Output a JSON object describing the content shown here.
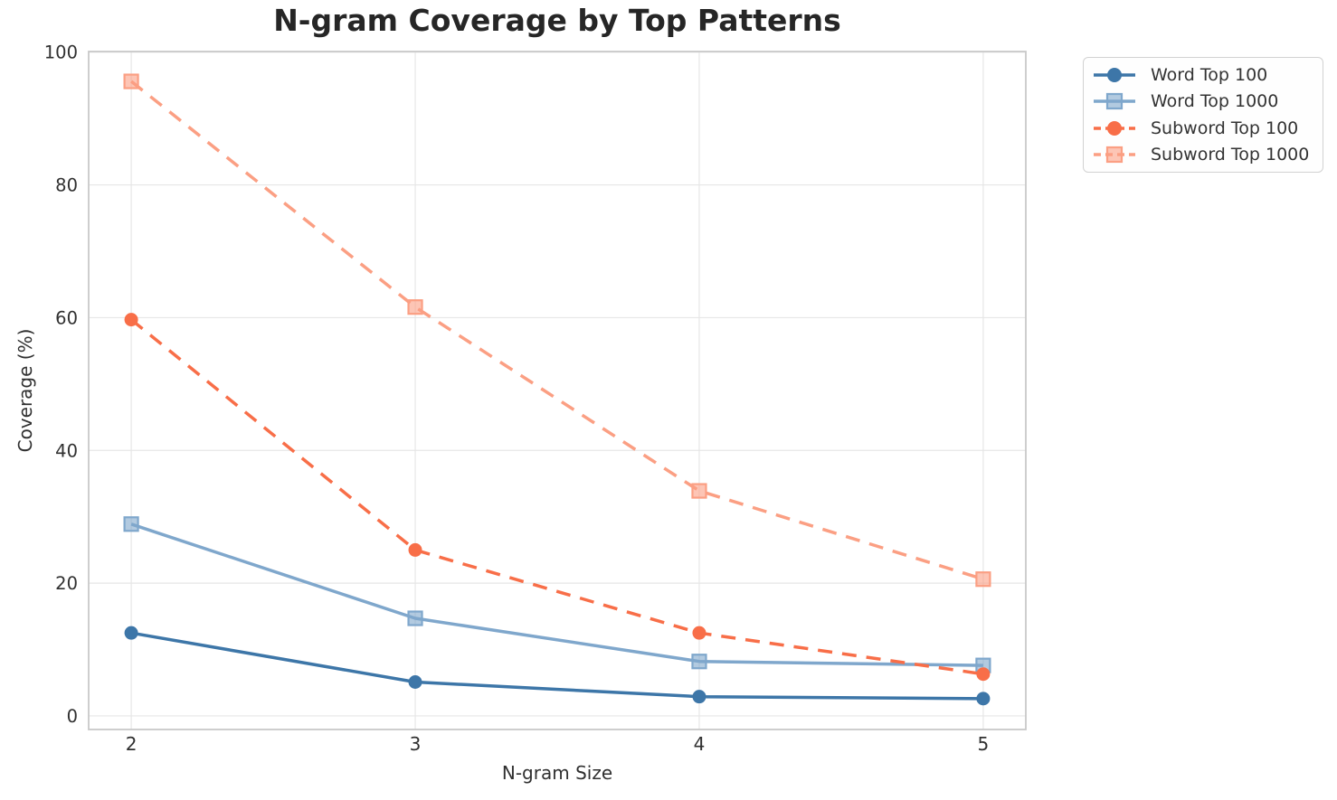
{
  "chart_data": {
    "type": "line",
    "title": "N-gram Coverage by Top Patterns",
    "xlabel": "N-gram Size",
    "ylabel": "Coverage (%)",
    "x": [
      2,
      3,
      4,
      5
    ],
    "xticks": [
      2,
      3,
      4,
      5
    ],
    "yticks": [
      0,
      20,
      40,
      60,
      80,
      100
    ],
    "xlim": [
      1.85,
      5.15
    ],
    "ylim": [
      -2.05,
      100.1
    ],
    "grid": true,
    "legend_position": "outside-top-right",
    "series": [
      {
        "name": "Word Top 100",
        "values": [
          12.5,
          5.1,
          2.9,
          2.6
        ],
        "color": "#3d76a8",
        "style": "solid",
        "marker": "circle"
      },
      {
        "name": "Word Top 1000",
        "values": [
          28.9,
          14.7,
          8.2,
          7.6
        ],
        "color": "#7fa7cc",
        "style": "solid",
        "marker": "square"
      },
      {
        "name": "Subword Top 100",
        "values": [
          59.7,
          25.0,
          12.5,
          6.3
        ],
        "color": "#f86e48",
        "style": "dashed",
        "marker": "circle"
      },
      {
        "name": "Subword Top 1000",
        "values": [
          95.6,
          61.6,
          33.9,
          20.6
        ],
        "color": "#fb9f83",
        "style": "dashed",
        "marker": "square"
      }
    ],
    "style_colors": {
      "background": "#ffffff",
      "grid": "#e6e6e6",
      "spine": "#c9c9c9",
      "tick_text": "#303030",
      "title_text": "#262626",
      "legend_border": "#d2d2d2"
    }
  }
}
